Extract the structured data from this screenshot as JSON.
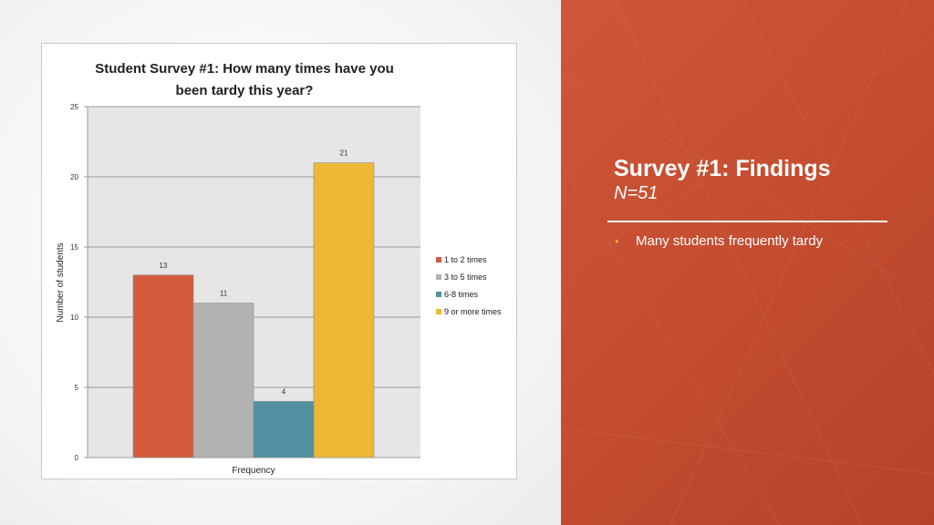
{
  "slide": {
    "title": "Survey #1: Findings",
    "subtitle": "N=51",
    "bullets": [
      "Many students frequently tardy"
    ],
    "colors": {
      "accent_panel": "#c9502f",
      "bullet": "#f5b642"
    }
  },
  "chart_data": {
    "type": "bar",
    "title_lines": [
      "Student Survey #1: How many times have you",
      "been tardy this year?"
    ],
    "xlabel": "Frequency",
    "ylabel": "Number of students",
    "ylim": [
      0,
      25
    ],
    "yticks": [
      0,
      5,
      10,
      15,
      20,
      25
    ],
    "grid": true,
    "legend_position": "right",
    "series": [
      {
        "name": "1 to 2 times",
        "value": 13,
        "color": "#d35a3c"
      },
      {
        "name": "3 to 5 times",
        "value": 11,
        "color": "#b2b2b2"
      },
      {
        "name": "6-8 times",
        "value": 4,
        "color": "#5090a0"
      },
      {
        "name": "9 or more times",
        "value": 21,
        "color": "#eeb834"
      }
    ]
  }
}
